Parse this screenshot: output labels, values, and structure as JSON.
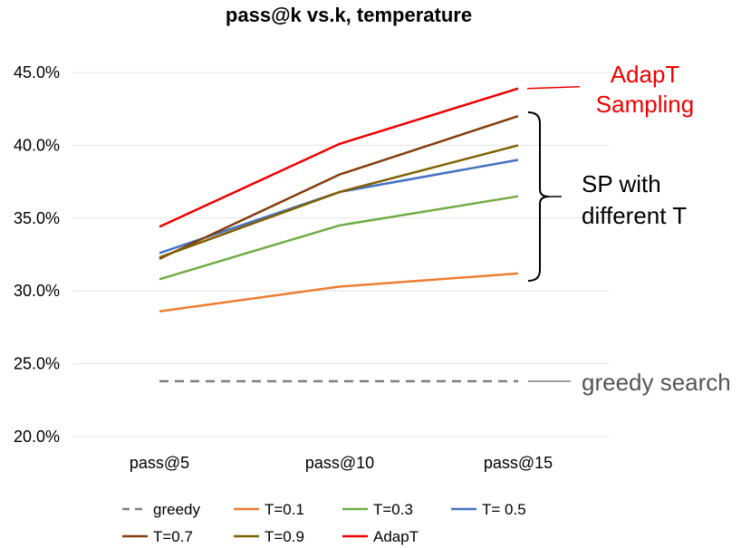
{
  "chart_data": {
    "type": "line",
    "title": "pass@k vs.k, temperature",
    "xlabel": "",
    "ylabel": "",
    "categories": [
      "pass@5",
      "pass@10",
      "pass@15"
    ],
    "ylim": [
      20.0,
      45.0
    ],
    "yticks": [
      "20.0%",
      "25.0%",
      "30.0%",
      "35.0%",
      "40.0%",
      "45.0%"
    ],
    "ytick_values": [
      20,
      25,
      30,
      35,
      40,
      45
    ],
    "grid": true,
    "series": [
      {
        "name": "greedy",
        "values": [
          23.8,
          23.8,
          23.8
        ],
        "color": "#7f7f7f",
        "dashed": true
      },
      {
        "name": "T=0.1",
        "values": [
          28.6,
          30.3,
          31.2
        ],
        "color": "#ed7d31",
        "dashed": false
      },
      {
        "name": "T=0.3",
        "values": [
          30.8,
          34.5,
          36.5
        ],
        "color": "#70ad47",
        "dashed": false
      },
      {
        "name": "T= 0.5",
        "values": [
          32.6,
          36.8,
          39.0
        ],
        "color": "#4472c4",
        "dashed": false
      },
      {
        "name": "T=0.7",
        "values": [
          32.2,
          38.0,
          42.0
        ],
        "color": "#843c0c",
        "dashed": false
      },
      {
        "name": "T=0.9",
        "values": [
          32.3,
          36.8,
          40.0
        ],
        "color": "#7f6000",
        "dashed": false
      },
      {
        "name": "AdapT",
        "values": [
          34.4,
          40.1,
          43.9
        ],
        "color": "#ee0000",
        "dashed": false
      }
    ],
    "legend_position": "bottom",
    "annotations": {
      "adapt_line1": "AdapT",
      "adapt_line2": "Sampling",
      "adapt_color": "#ee0000",
      "sp_line1": "SP with",
      "sp_line2": "different T",
      "sp_color": "#000000",
      "greedy_label": "greedy search",
      "greedy_color": "#555555"
    }
  }
}
